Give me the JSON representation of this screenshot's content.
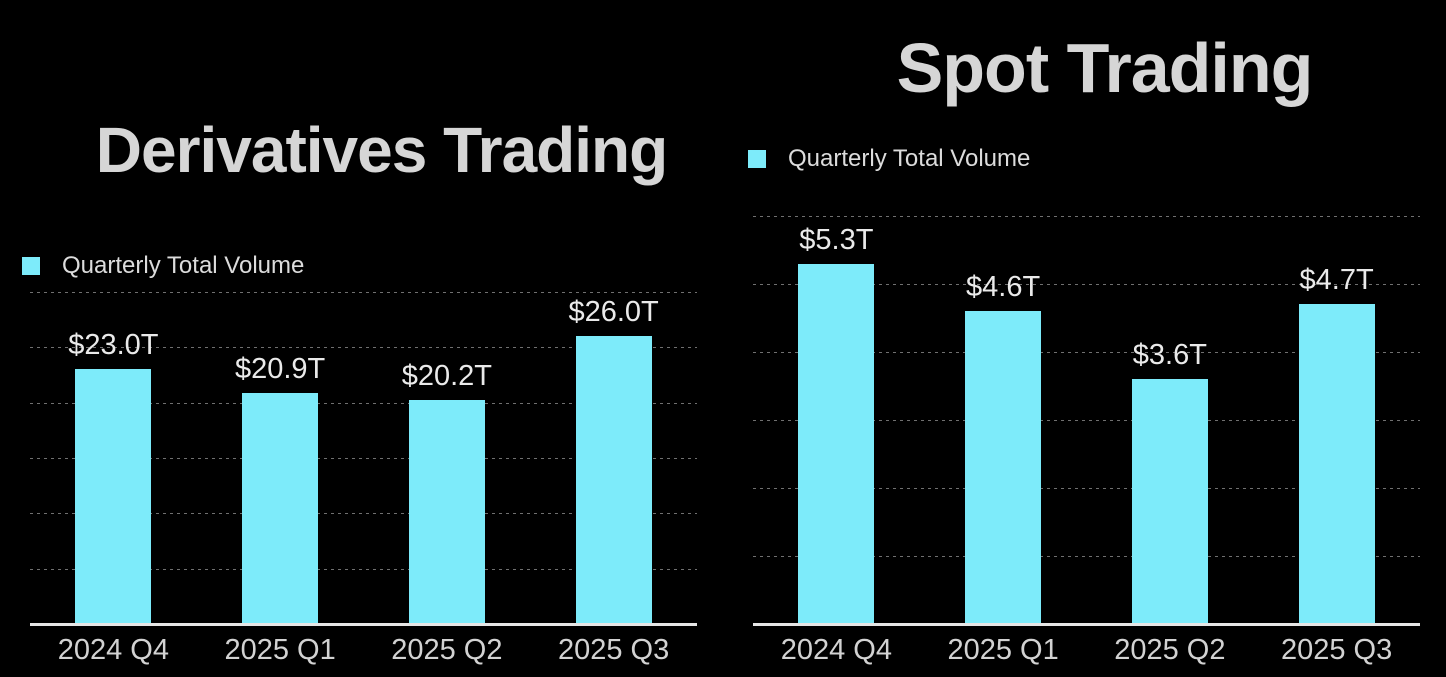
{
  "page": {
    "background": "#000000"
  },
  "style": {
    "bar_color": "#7DEBFA",
    "title_color": "#D6D6D6",
    "value_label_color": "#EAEAEA",
    "axis_label_color": "#D2D2D2",
    "legend_text_color": "#DCDCDC",
    "gridline_color": "#707070",
    "baseline_color": "#E6E6E6"
  },
  "chart_data": [
    {
      "type": "bar",
      "title": "Derivatives Trading",
      "legend": [
        {
          "label": "Quarterly Total Volume",
          "color": "#7DEBFA"
        }
      ],
      "legend_position": "top-left",
      "categories": [
        "2024 Q4",
        "2025 Q1",
        "2025 Q2",
        "2025 Q3"
      ],
      "values": [
        23.0,
        20.9,
        20.2,
        26.0
      ],
      "value_labels": [
        "$23.0T",
        "$20.9T",
        "$20.2T",
        "$26.0T"
      ],
      "ylim": [
        0,
        30
      ],
      "grid_step": 5,
      "grid": "dashed horizontal",
      "y_tick_labels_visible": false
    },
    {
      "type": "bar",
      "title": "Spot Trading",
      "legend": [
        {
          "label": "Quarterly Total Volume",
          "color": "#7DEBFA"
        }
      ],
      "legend_position": "top-left",
      "categories": [
        "2024 Q4",
        "2025 Q1",
        "2025 Q2",
        "2025 Q3"
      ],
      "values": [
        5.3,
        4.6,
        3.6,
        4.7
      ],
      "value_labels": [
        "$5.3T",
        "$4.6T",
        "$3.6T",
        "$4.7T"
      ],
      "ylim": [
        0,
        6
      ],
      "grid_step": 1,
      "grid": "dashed horizontal",
      "y_tick_labels_visible": false
    }
  ]
}
